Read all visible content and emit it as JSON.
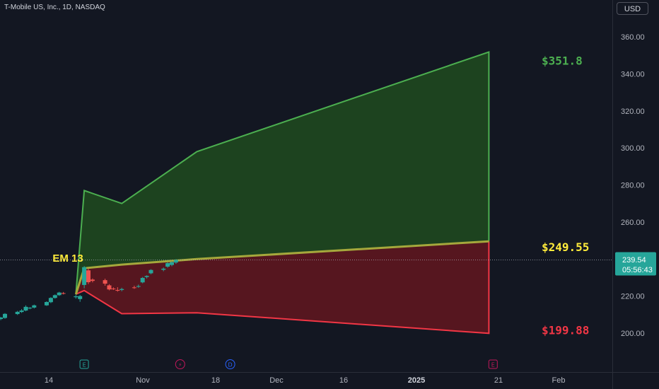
{
  "header": {
    "title": "T-Mobile US, Inc., 1D, NASDAQ",
    "currency_button": "USD"
  },
  "price_tag": {
    "price": "239.54",
    "countdown": "05:56:43"
  },
  "events": [
    {
      "icon": "earnings-icon",
      "glyph": "E",
      "x": "Oct 23"
    },
    {
      "icon": "split-icon",
      "glyph": "⚡",
      "x": "Nov 15"
    },
    {
      "icon": "dividend-icon",
      "glyph": "D",
      "x": "Nov 27"
    },
    {
      "icon": "earnings-icon",
      "glyph": "E",
      "x": "Jan 29"
    }
  ],
  "chart_data": {
    "type": "area",
    "ylim": [
      190,
      370
    ],
    "y_ticks": [
      "200.00",
      "220.00",
      "240.00",
      "260.00",
      "280.00",
      "300.00",
      "320.00",
      "340.00",
      "360.00"
    ],
    "x_ticks": [
      "14",
      "Nov",
      "18",
      "Dec",
      "16",
      "2025",
      "21",
      "Feb"
    ],
    "grid": false,
    "reference_line": 239.54,
    "expected_move_label": "EM 13",
    "bands": {
      "x": [
        "Oct 21",
        "Oct 23",
        "Nov 1",
        "Nov 19",
        "Jan 28"
      ],
      "upper": [
        221,
        277,
        270,
        298,
        351.8
      ],
      "middle": [
        221,
        235,
        237,
        240,
        249.55
      ],
      "lower": [
        221,
        223,
        210.5,
        211,
        199.88
      ]
    },
    "end_labels": {
      "upper": "$351.8",
      "middle": "$249.55",
      "lower": "$199.88"
    },
    "colors": {
      "upper": "#4caf50",
      "middle": "#a5a83c",
      "lower": "#f23645",
      "label_middle": "#ffeb3b",
      "up": "#26a69a",
      "down": "#ef5350"
    },
    "candles": [
      {
        "x": "Sep 30",
        "o": 207.6,
        "h": 208.4,
        "l": 206.9,
        "c": 207.9
      },
      {
        "x": "Oct 1",
        "o": 207.6,
        "h": 208.6,
        "l": 206.9,
        "c": 208.1
      },
      {
        "x": "Oct 2",
        "o": 207.3,
        "h": 208.3,
        "l": 206.6,
        "c": 207.8
      },
      {
        "x": "Oct 3",
        "o": 207.6,
        "h": 208.8,
        "l": 207.0,
        "c": 208.4
      },
      {
        "x": "Oct 4",
        "o": 208.2,
        "h": 210.8,
        "l": 207.8,
        "c": 210.4
      },
      {
        "x": "Oct 7",
        "o": 210.3,
        "h": 212.0,
        "l": 209.8,
        "c": 211.5
      },
      {
        "x": "Oct 8",
        "o": 211.4,
        "h": 213.0,
        "l": 210.9,
        "c": 212.2
      },
      {
        "x": "Oct 9",
        "o": 212.2,
        "h": 215.0,
        "l": 211.8,
        "c": 214.2
      },
      {
        "x": "Oct 10",
        "o": 213.3,
        "h": 214.1,
        "l": 212.9,
        "c": 213.7
      },
      {
        "x": "Oct 11",
        "o": 213.8,
        "h": 215.4,
        "l": 213.3,
        "c": 215.0
      },
      {
        "x": "Oct 14",
        "o": 215.0,
        "h": 217.2,
        "l": 214.7,
        "c": 216.8
      },
      {
        "x": "Oct 15",
        "o": 216.7,
        "h": 219.4,
        "l": 216.2,
        "c": 219.0
      },
      {
        "x": "Oct 16",
        "o": 219.0,
        "h": 220.9,
        "l": 218.6,
        "c": 220.5
      },
      {
        "x": "Oct 17",
        "o": 220.5,
        "h": 222.3,
        "l": 220.1,
        "c": 221.9
      },
      {
        "x": "Oct 18",
        "o": 221.6,
        "h": 222.2,
        "l": 220.9,
        "c": 221.4
      },
      {
        "x": "Oct 21",
        "o": 219.4,
        "h": 220.8,
        "l": 218.6,
        "c": 219.9
      },
      {
        "x": "Oct 22",
        "o": 218.4,
        "h": 220.6,
        "l": 216.9,
        "c": 220.0
      },
      {
        "x": "Oct 23",
        "o": 226.0,
        "h": 236.2,
        "l": 224.2,
        "c": 235.6
      },
      {
        "x": "Oct 24",
        "o": 233.9,
        "h": 234.8,
        "l": 226.5,
        "c": 227.5
      },
      {
        "x": "Oct 25",
        "o": 228.9,
        "h": 229.5,
        "l": 227.4,
        "c": 228.2
      },
      {
        "x": "Oct 28",
        "o": 228.6,
        "h": 229.4,
        "l": 225.6,
        "c": 226.7
      },
      {
        "x": "Oct 29",
        "o": 225.8,
        "h": 226.4,
        "l": 223.1,
        "c": 223.6
      },
      {
        "x": "Oct 30",
        "o": 224.1,
        "h": 224.7,
        "l": 223.3,
        "c": 223.8
      },
      {
        "x": "Oct 31",
        "o": 223.3,
        "h": 224.8,
        "l": 222.4,
        "c": 222.9
      },
      {
        "x": "Nov 1",
        "o": 223.3,
        "h": 224.5,
        "l": 222.6,
        "c": 223.8
      },
      {
        "x": "Nov 4",
        "o": 224.7,
        "h": 225.6,
        "l": 223.9,
        "c": 224.4
      },
      {
        "x": "Nov 5",
        "o": 225.0,
        "h": 226.2,
        "l": 224.5,
        "c": 225.4
      },
      {
        "x": "Nov 6",
        "o": 227.4,
        "h": 230.3,
        "l": 226.9,
        "c": 229.8
      },
      {
        "x": "Nov 7",
        "o": 230.3,
        "h": 231.2,
        "l": 229.5,
        "c": 230.9
      },
      {
        "x": "Nov 8",
        "o": 232.3,
        "h": 234.5,
        "l": 231.8,
        "c": 234.1
      },
      {
        "x": "Nov 11",
        "o": 234.2,
        "h": 235.4,
        "l": 233.4,
        "c": 234.8
      },
      {
        "x": "Nov 12",
        "o": 235.9,
        "h": 238.3,
        "l": 235.3,
        "c": 237.8
      },
      {
        "x": "Nov 13",
        "o": 236.8,
        "h": 238.8,
        "l": 236.1,
        "c": 238.3
      },
      {
        "x": "Nov 14",
        "o": 238.1,
        "h": 239.9,
        "l": 237.4,
        "c": 239.5
      }
    ]
  }
}
